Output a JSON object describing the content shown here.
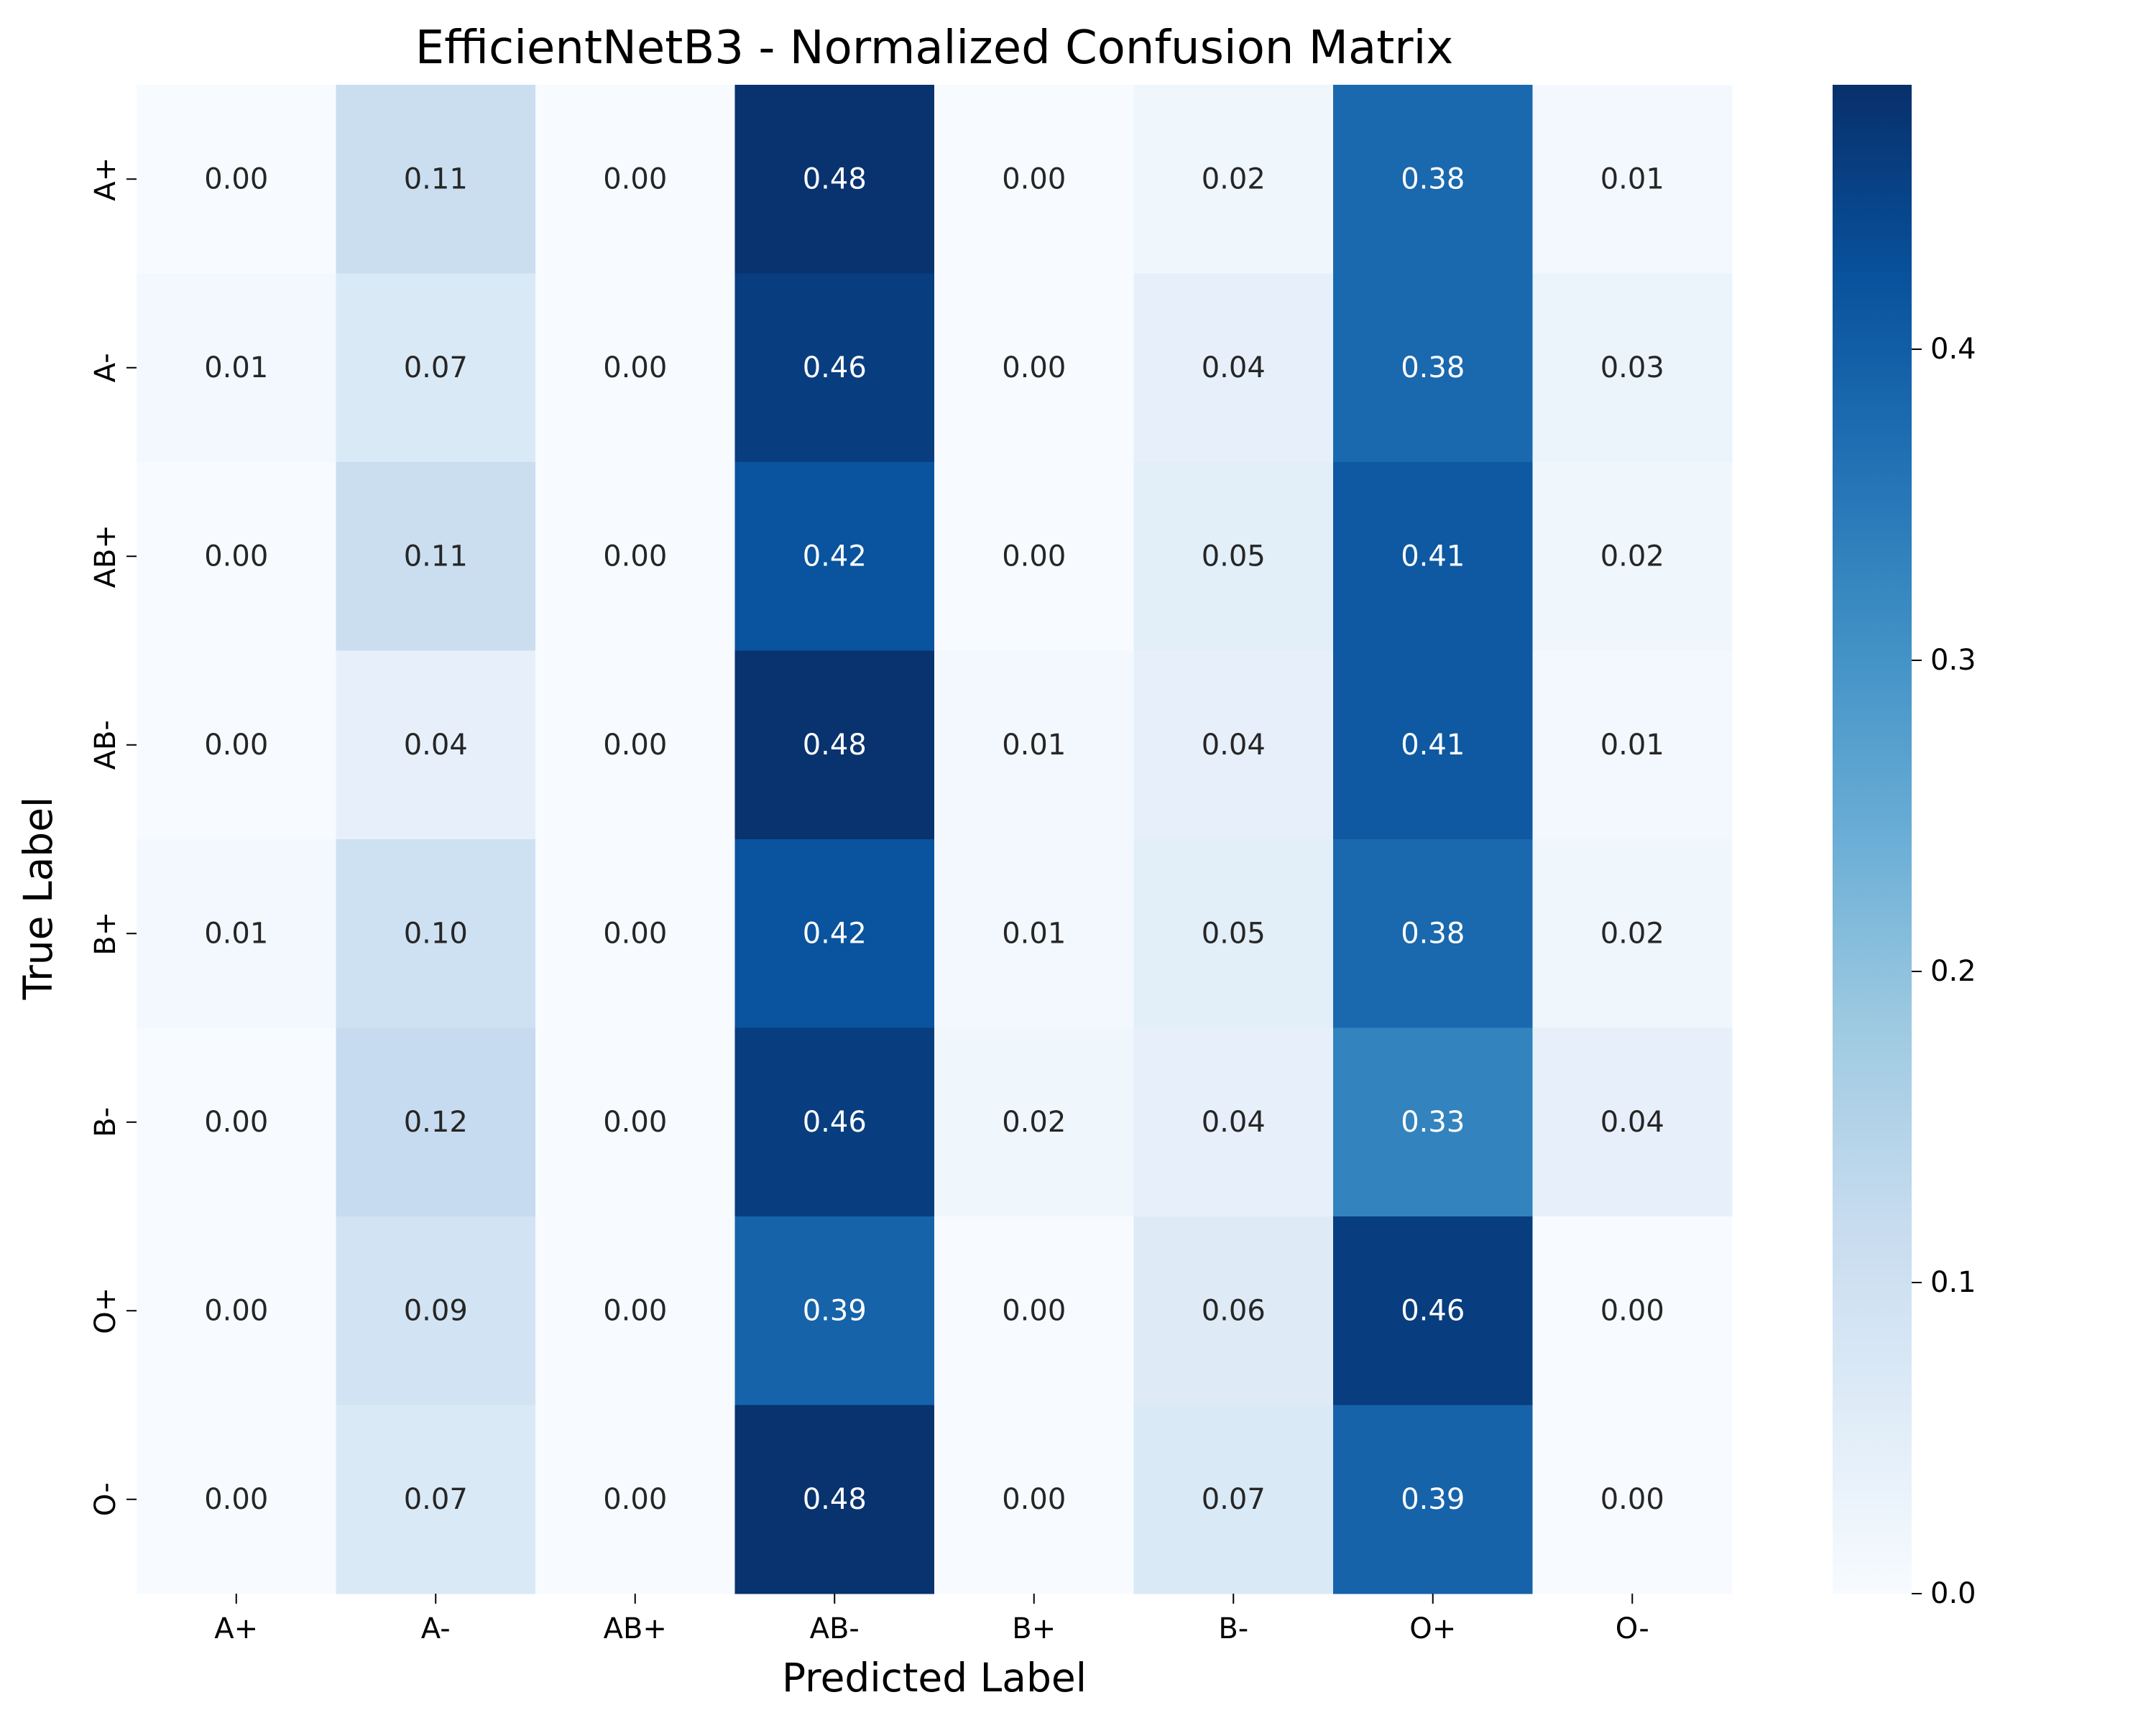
{
  "chart_data": {
    "type": "heatmap",
    "title": "EfficientNetB3 - Normalized Confusion Matrix",
    "xlabel": "Predicted Label",
    "ylabel": "True Label",
    "x_categories": [
      "A+",
      "A-",
      "AB+",
      "AB-",
      "B+",
      "B-",
      "O+",
      "O-"
    ],
    "y_categories": [
      "A+",
      "A-",
      "AB+",
      "AB-",
      "B+",
      "B-",
      "O+",
      "O-"
    ],
    "values": [
      [
        0.0,
        0.11,
        0.0,
        0.48,
        0.0,
        0.02,
        0.38,
        0.01
      ],
      [
        0.01,
        0.07,
        0.0,
        0.46,
        0.0,
        0.04,
        0.38,
        0.03
      ],
      [
        0.0,
        0.11,
        0.0,
        0.42,
        0.0,
        0.05,
        0.41,
        0.02
      ],
      [
        0.0,
        0.04,
        0.0,
        0.48,
        0.01,
        0.04,
        0.41,
        0.01
      ],
      [
        0.01,
        0.1,
        0.0,
        0.42,
        0.01,
        0.05,
        0.38,
        0.02
      ],
      [
        0.0,
        0.12,
        0.0,
        0.46,
        0.02,
        0.04,
        0.33,
        0.04
      ],
      [
        0.0,
        0.09,
        0.0,
        0.39,
        0.0,
        0.06,
        0.46,
        0.0
      ],
      [
        0.0,
        0.07,
        0.0,
        0.48,
        0.0,
        0.07,
        0.39,
        0.0
      ]
    ],
    "value_format": "0.00",
    "colormap": "Blues",
    "color_range": [
      0.0,
      0.485
    ],
    "colorbar": {
      "ticks": [
        0.0,
        0.1,
        0.2,
        0.3,
        0.4
      ],
      "tick_labels": [
        "0.0",
        "0.1",
        "0.2",
        "0.3",
        "0.4"
      ]
    },
    "grid": false,
    "colors": {
      "blues_stops": [
        "#f7fbff",
        "#deebf7",
        "#c6dbef",
        "#9ecae1",
        "#6baed6",
        "#4292c6",
        "#2171b5",
        "#08519c",
        "#08306b"
      ],
      "label_dark": "#262626",
      "label_light": "#ffffff"
    }
  }
}
